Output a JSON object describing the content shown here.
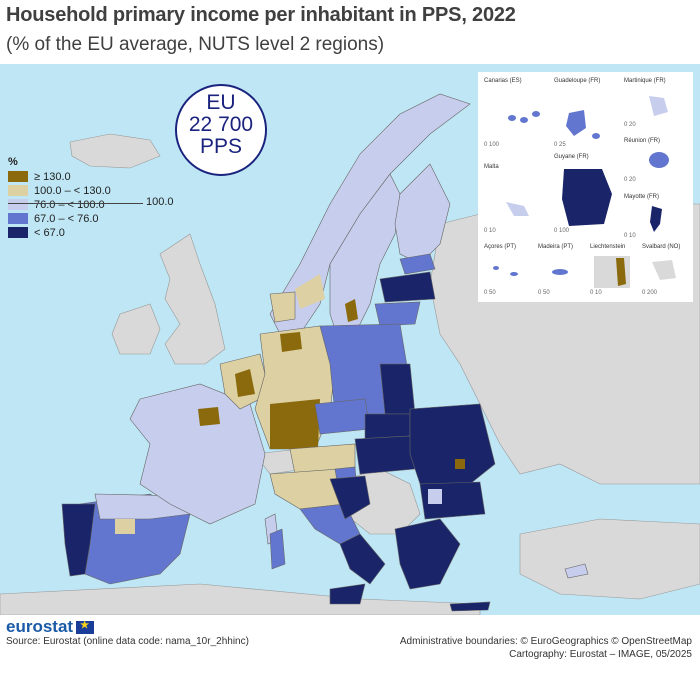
{
  "title": "Household primary income per inhabitant in PPS, 2022",
  "subtitle": "(% of the EU average, NUTS level 2 regions)",
  "badge": {
    "line1": "EU",
    "line2": "22 700",
    "line3": "PPS"
  },
  "legend": {
    "unit": "%",
    "reference": "100.0",
    "classes": [
      {
        "label": "≥ 130.0",
        "color": "#8a6a0c"
      },
      {
        "label": "100.0 – < 130.0",
        "color": "#ddd0a2"
      },
      {
        "label": "76.0 – < 100.0",
        "color": "#c7cdec"
      },
      {
        "label": "67.0 – < 76.0",
        "color": "#6376cf"
      },
      {
        "label": "< 67.0",
        "color": "#1a2569"
      }
    ]
  },
  "insets": [
    {
      "name": "Canarias (ES)",
      "scale": "0   100"
    },
    {
      "name": "Guadeloupe (FR)",
      "scale": "0   25"
    },
    {
      "name": "Martinique (FR)",
      "scale": "0  20"
    },
    {
      "name": "Malta",
      "scale": "0   10"
    },
    {
      "name": "Guyane (FR)",
      "scale": "0   100"
    },
    {
      "name": "Réunion (FR)",
      "scale": "0  20"
    },
    {
      "name": "Mayotte (FR)",
      "scale": "0  10"
    },
    {
      "name": "Açores (PT)",
      "scale": "0  50"
    },
    {
      "name": "Madeira (PT)",
      "scale": "0   50"
    },
    {
      "name": "Liechtenstein",
      "scale": "0   10"
    },
    {
      "name": "Svalbard (NO)",
      "scale": "0   200"
    }
  ],
  "footer": {
    "logo": "eurostat",
    "source": "Source: Eurostat (online data code: nama_10r_2hhinc)",
    "boundaries": "Administrative boundaries: © EuroGeographics © OpenStreetMap",
    "cartography": "Cartography: Eurostat – IMAGE, 05/2025"
  },
  "colors": {
    "sea": "#bfe6f5",
    "non_eu": "#d9d9d9",
    "border": "#777777",
    "accent": "#1a237e"
  }
}
